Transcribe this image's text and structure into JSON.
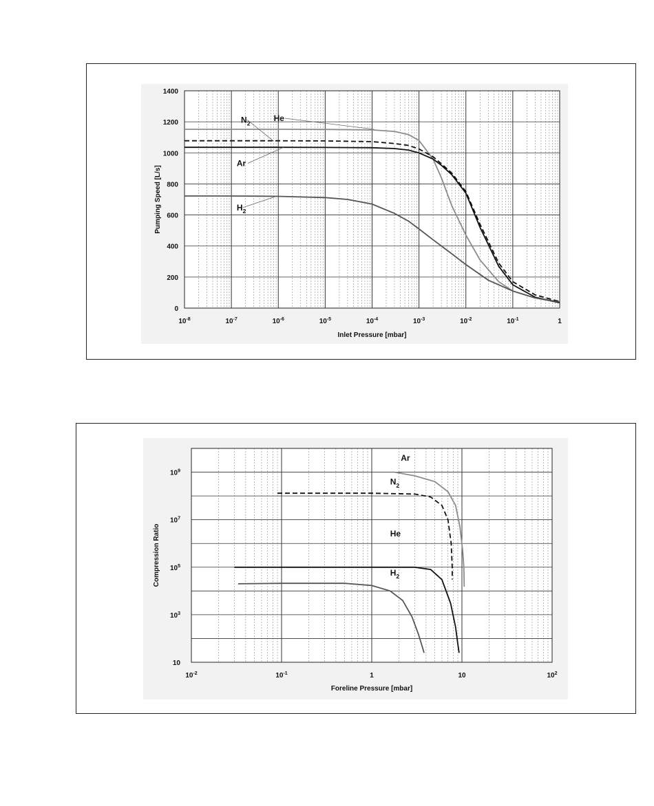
{
  "chart_data": [
    {
      "type": "line",
      "xlabel": "Inlet Pressure [mbar]",
      "ylabel": "Pumping Speed [L/s]",
      "x_scale": "log",
      "xlim": [
        1e-08,
        1
      ],
      "ylim": [
        0,
        1400
      ],
      "x_ticks": [
        {
          "value": 1e-08,
          "base": "10",
          "exp": "-8"
        },
        {
          "value": 1e-07,
          "base": "10",
          "exp": "-7"
        },
        {
          "value": 1e-06,
          "base": "10",
          "exp": "-6"
        },
        {
          "value": 1e-05,
          "base": "10",
          "exp": "-5"
        },
        {
          "value": 0.0001,
          "base": "10",
          "exp": "-4"
        },
        {
          "value": 0.001,
          "base": "10",
          "exp": "-3"
        },
        {
          "value": 0.01,
          "base": "10",
          "exp": "-2"
        },
        {
          "value": 0.1,
          "base": "10",
          "exp": "-1"
        },
        {
          "value": 1,
          "base": "1",
          "exp": ""
        }
      ],
      "y_ticks": [
        "0",
        "200",
        "400",
        "600",
        "800",
        "1000",
        "1200",
        "1400"
      ],
      "grid": true,
      "series": [
        {
          "name": "He",
          "label_sub": "",
          "color": "#8c8c8c",
          "dash": "",
          "label_at": [
            8e-07,
            1205
          ],
          "leader_to": [
            0.00011,
            1152
          ],
          "x": [
            1e-08,
            1e-06,
            1e-05,
            0.0001,
            0.0003,
            0.0006,
            0.001,
            0.002,
            0.003,
            0.005,
            0.01,
            0.02,
            0.05,
            0.1,
            0.3,
            1
          ],
          "y": [
            1152,
            1152,
            1151,
            1148,
            1138,
            1118,
            1080,
            960,
            840,
            660,
            470,
            310,
            170,
            110,
            65,
            35
          ]
        },
        {
          "name": "N",
          "label_sub": "2",
          "color": "#111111",
          "dash": "7,4",
          "label_at": [
            1.6e-07,
            1195
          ],
          "leader_to": [
            8e-07,
            1075
          ],
          "x": [
            1e-08,
            1e-06,
            1e-05,
            0.0001,
            0.0003,
            0.0006,
            0.001,
            0.002,
            0.003,
            0.005,
            0.01,
            0.02,
            0.05,
            0.1,
            0.3,
            1
          ],
          "y": [
            1078,
            1078,
            1077,
            1072,
            1060,
            1048,
            1025,
            975,
            930,
            870,
            750,
            540,
            290,
            170,
            85,
            42
          ]
        },
        {
          "name": "Ar",
          "label_sub": "",
          "color": "#111111",
          "dash": "",
          "label_at": [
            1.3e-07,
            915
          ],
          "leader_to": [
            1.3e-06,
            1036
          ],
          "x": [
            1e-08,
            1e-06,
            1e-05,
            0.0001,
            0.0003,
            0.0006,
            0.001,
            0.002,
            0.003,
            0.005,
            0.01,
            0.02,
            0.05,
            0.1,
            0.3,
            1
          ],
          "y": [
            1036,
            1036,
            1035,
            1033,
            1028,
            1018,
            1000,
            960,
            920,
            860,
            740,
            520,
            270,
            150,
            70,
            35
          ]
        },
        {
          "name": "H",
          "label_sub": "2",
          "color": "#555555",
          "dash": "",
          "label_at": [
            1.3e-07,
            630
          ],
          "leader_to": [
            9e-07,
            720
          ],
          "x": [
            1e-08,
            1e-07,
            1e-06,
            1e-05,
            3e-05,
            0.0001,
            0.0003,
            0.0006,
            0.001,
            0.002,
            0.005,
            0.01,
            0.03,
            0.1,
            0.3,
            1
          ],
          "y": [
            722,
            722,
            720,
            712,
            700,
            670,
            610,
            560,
            510,
            440,
            350,
            280,
            180,
            110,
            65,
            40
          ]
        }
      ]
    },
    {
      "type": "line",
      "xlabel": "Foreline Pressure [mbar]",
      "ylabel": "Compression Ratio",
      "x_scale": "log",
      "y_scale": "log",
      "xlim": [
        0.01,
        100
      ],
      "ylim": [
        10,
        10000000000.0
      ],
      "x_ticks": [
        {
          "value": 0.01,
          "base": "10",
          "exp": "-2"
        },
        {
          "value": 0.1,
          "base": "10",
          "exp": "-1"
        },
        {
          "value": 1,
          "base": "1",
          "exp": ""
        },
        {
          "value": 10,
          "base": "10",
          "exp": ""
        },
        {
          "value": 100,
          "base": "10",
          "exp": "2"
        }
      ],
      "y_ticks": [
        {
          "value": 10,
          "base": "10",
          "exp": ""
        },
        {
          "value": 1000,
          "base": "10",
          "exp": "3"
        },
        {
          "value": 100000,
          "base": "10",
          "exp": "5"
        },
        {
          "value": 10000000,
          "base": "10",
          "exp": "7"
        },
        {
          "value": 1000000000,
          "base": "10",
          "exp": "9"
        }
      ],
      "grid": true,
      "series": [
        {
          "name": "Ar",
          "label_sub": "",
          "color": "#8c8c8c",
          "dash": "",
          "label_at": [
            2.1,
            3000000000.0
          ],
          "x": [
            1.8,
            3,
            5,
            7,
            8.5,
            9.5,
            10.2,
            10.5,
            10.6
          ],
          "y": [
            1000000000.0,
            700000000.0,
            400000000.0,
            150000000.0,
            40000000.0,
            5000000.0,
            500000.0,
            100000.0,
            15000.0
          ]
        },
        {
          "name": "N",
          "label_sub": "2",
          "color": "#111111",
          "dash": "7,4",
          "label_at": [
            1.6,
            300000000.0
          ],
          "x": [
            0.09,
            0.3,
            1,
            3,
            4.5,
            6,
            7,
            7.6,
            7.8,
            7.8
          ],
          "y": [
            130000000.0,
            130000000.0,
            130000000.0,
            120000000.0,
            90000000.0,
            40000000.0,
            10000000.0,
            1000000.0,
            100000.0,
            30000.0
          ]
        },
        {
          "name": "He",
          "label_sub": "",
          "color": "#111111",
          "dash": "",
          "label_at": [
            1.6,
            2000000.0
          ],
          "x": [
            0.03,
            0.3,
            1,
            3,
            4.5,
            6,
            7.5,
            8.5,
            9,
            9.3
          ],
          "y": [
            100000.0,
            100000.0,
            100000.0,
            100000.0,
            80000.0,
            30000.0,
            3000.0,
            300.0,
            60,
            25
          ]
        },
        {
          "name": "H",
          "label_sub": "2",
          "color": "#555555",
          "dash": "",
          "label_at": [
            1.6,
            45000.0
          ],
          "x": [
            0.033,
            0.1,
            0.5,
            1,
            1.6,
            2.2,
            2.8,
            3.3,
            3.6,
            3.8
          ],
          "y": [
            20000.0,
            21000.0,
            21000.0,
            17000.0,
            10000.0,
            4000.0,
            800,
            150,
            50,
            25
          ]
        }
      ]
    }
  ]
}
